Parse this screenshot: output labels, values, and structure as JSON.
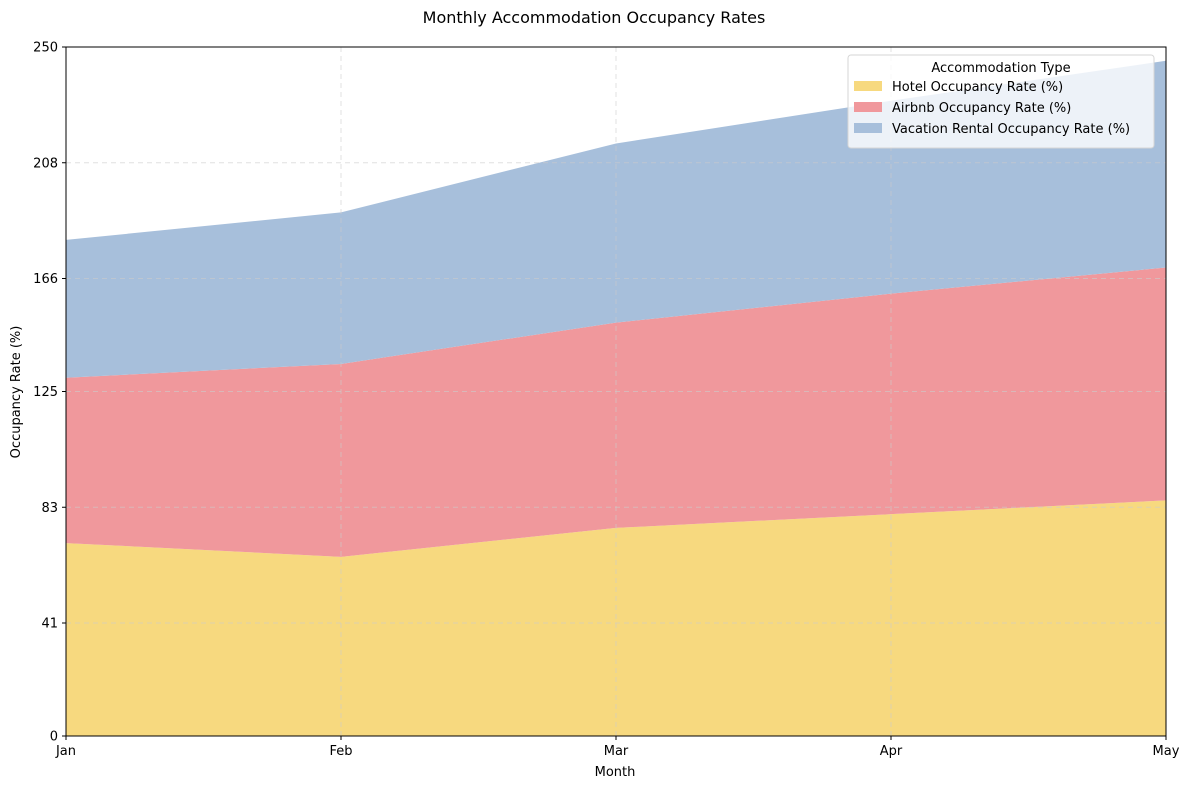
{
  "chart_data": {
    "type": "area",
    "stacked": true,
    "title": "Monthly Accommodation Occupancy Rates",
    "xlabel": "Month",
    "ylabel": "Occupancy Rate (%)",
    "categories": [
      "Jan",
      "Feb",
      "Mar",
      "Apr",
      "May"
    ],
    "yticks": [
      0,
      41,
      83,
      125,
      166,
      208,
      250
    ],
    "ylim": [
      0,
      250
    ],
    "grid": true,
    "legend": {
      "title": "Accommodation Type",
      "placement": "top-right"
    },
    "series": [
      {
        "name": "Hotel Occupancy Rate (%)",
        "color": "#f7d97f",
        "values": [
          70,
          65,
          75.5,
          80.5,
          85.5
        ]
      },
      {
        "name": "Airbnb Occupancy Rate (%)",
        "color": "#f0989c",
        "values": [
          60,
          70,
          74.5,
          80,
          84.5
        ]
      },
      {
        "name": "Vacation Rental Occupancy Rate (%)",
        "color": "#a7bfdb",
        "values": [
          50,
          55,
          65,
          70,
          75
        ]
      }
    ]
  }
}
